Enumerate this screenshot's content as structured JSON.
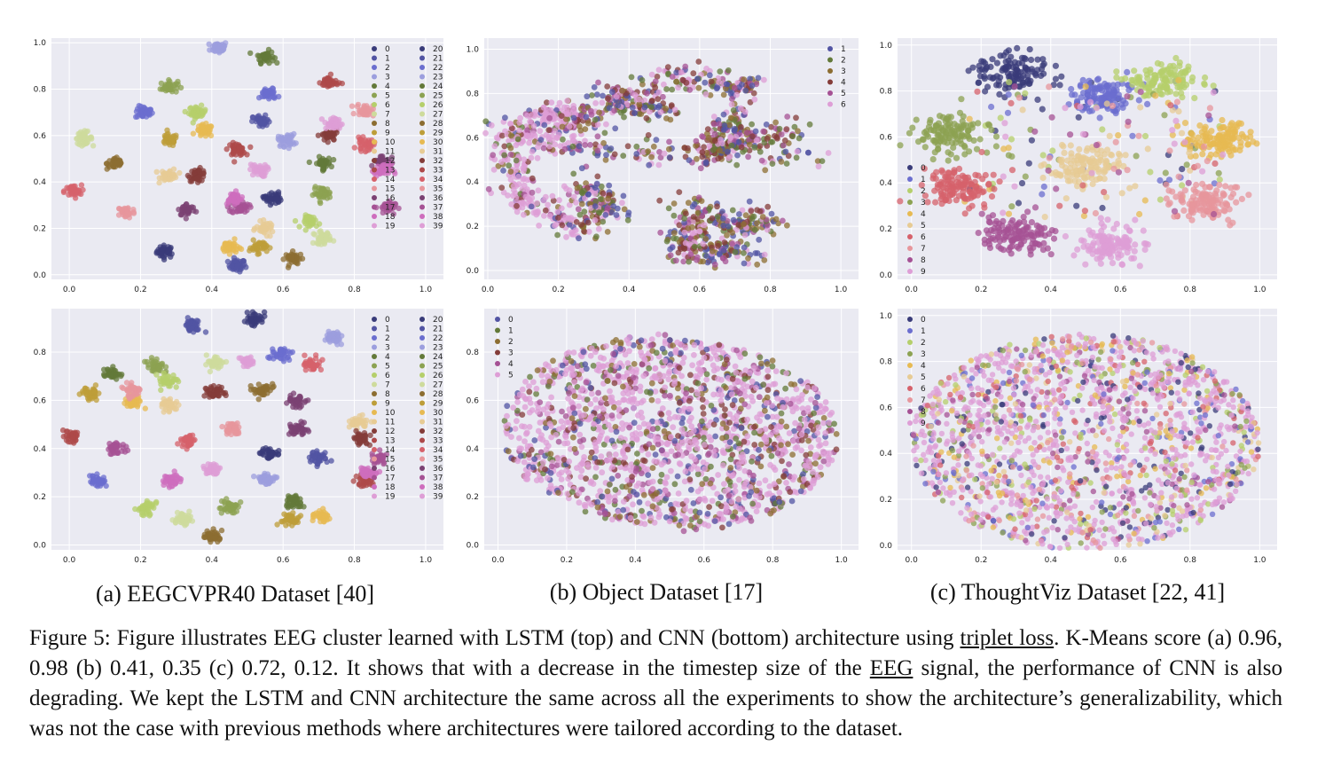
{
  "figure": {
    "subcaptions": [
      "(a) EEGCVPR40 Dataset [40]",
      "(b) Object Dataset [17]",
      "(c) ThoughtViz Dataset [22, 41]"
    ],
    "caption_parts": [
      "Figure 5: Figure illustrates EEG cluster learned with LSTM (top) and CNN (bottom) architecture using ",
      "triplet loss",
      ". K-Means score (a) 0.96, 0.98 (b) 0.41, 0.35 (c) 0.72, 0.12. It shows that with a decrease in the timestep size of the ",
      "EEG",
      " signal, the performance of CNN is also degrading. We kept the LSTM and CNN architecture the same across all the experiments to show the architecture’s generalizability, which was not the case with previous methods where architectures were tailored according to the dataset."
    ]
  },
  "colors": {
    "plot_bg": "#eaeaf2",
    "grid": "#ffffff",
    "palette": [
      "#393b79",
      "#5254a3",
      "#6b6ecf",
      "#9c9ede",
      "#637939",
      "#8ca252",
      "#b5cf6b",
      "#cedb9c",
      "#8c6d31",
      "#bd9e39",
      "#e7ba52",
      "#e7cb94",
      "#843c39",
      "#ad494a",
      "#d6616b",
      "#e7969c",
      "#7b4173",
      "#a55194",
      "#ce6dbd",
      "#de9ed6"
    ]
  },
  "chart_data": [
    {
      "id": "eegcvpr40-lstm",
      "type": "scatter",
      "title": "",
      "xlabel": "",
      "ylabel": "",
      "xlim": [
        -0.05,
        1.05
      ],
      "ylim": [
        -0.02,
        1.02
      ],
      "xticks": [
        "0.0",
        "0.2",
        "0.4",
        "0.6",
        "0.8",
        "1.0"
      ],
      "yticks": [
        "0.0",
        "0.2",
        "0.4",
        "0.6",
        "0.8",
        "1.0"
      ],
      "legend": {
        "placement": "right",
        "columns": 2,
        "labels": [
          "0",
          "1",
          "2",
          "3",
          "4",
          "5",
          "6",
          "7",
          "8",
          "9",
          "10",
          "11",
          "12",
          "13",
          "14",
          "15",
          "16",
          "17",
          "18",
          "19",
          "20",
          "21",
          "22",
          "23",
          "24",
          "25",
          "26",
          "27",
          "28",
          "29",
          "30",
          "31",
          "32",
          "33",
          "34",
          "35",
          "36",
          "37",
          "38",
          "39"
        ]
      },
      "cluster_centers": [
        [
          0.27,
          0.1
        ],
        [
          0.47,
          0.04
        ],
        [
          0.21,
          0.7
        ],
        [
          0.42,
          0.98
        ],
        [
          0.55,
          0.94
        ],
        [
          0.28,
          0.81
        ],
        [
          0.36,
          0.7
        ],
        [
          0.04,
          0.59
        ],
        [
          0.13,
          0.48
        ],
        [
          0.28,
          0.58
        ],
        [
          0.38,
          0.62
        ],
        [
          0.28,
          0.43
        ],
        [
          0.36,
          0.43
        ],
        [
          0.47,
          0.54
        ],
        [
          0.01,
          0.36
        ],
        [
          0.16,
          0.27
        ],
        [
          0.33,
          0.28
        ],
        [
          0.48,
          0.29
        ],
        [
          0.46,
          0.33
        ],
        [
          0.53,
          0.45
        ],
        [
          0.57,
          0.33
        ],
        [
          0.54,
          0.66
        ],
        [
          0.56,
          0.78
        ],
        [
          0.61,
          0.58
        ],
        [
          0.71,
          0.48
        ],
        [
          0.71,
          0.35
        ],
        [
          0.68,
          0.23
        ],
        [
          0.71,
          0.16
        ],
        [
          0.63,
          0.07
        ],
        [
          0.53,
          0.12
        ],
        [
          0.45,
          0.12
        ],
        [
          0.55,
          0.2
        ],
        [
          0.73,
          0.6
        ],
        [
          0.73,
          0.83
        ],
        [
          0.83,
          0.56
        ],
        [
          0.83,
          0.71
        ],
        [
          0.88,
          0.49
        ],
        [
          0.89,
          0.29
        ],
        [
          0.88,
          0.45
        ],
        [
          0.74,
          0.65
        ]
      ],
      "cluster_spread": 0.011,
      "points_per_cluster": 40
    },
    {
      "id": "object-lstm",
      "type": "scatter",
      "title": "",
      "xlabel": "",
      "ylabel": "",
      "xlim": [
        -0.01,
        1.05
      ],
      "ylim": [
        -0.04,
        1.05
      ],
      "xticks": [
        "0.0",
        "0.2",
        "0.4",
        "0.6",
        "0.8",
        "1.0"
      ],
      "yticks": [
        "0.0",
        "0.2",
        "0.4",
        "0.6",
        "0.8",
        "1.0"
      ],
      "legend": {
        "placement": "top-right",
        "columns": 1,
        "labels": [
          "1",
          "2",
          "3",
          "4",
          "5",
          "6"
        ]
      },
      "shape": "manifold",
      "points": 1500
    },
    {
      "id": "thoughtviz-lstm",
      "type": "scatter",
      "title": "",
      "xlabel": "",
      "ylabel": "",
      "xlim": [
        -0.04,
        1.05
      ],
      "ylim": [
        -0.02,
        1.03
      ],
      "xticks": [
        "0.0",
        "0.2",
        "0.4",
        "0.6",
        "0.8",
        "1.0"
      ],
      "yticks": [
        "0.0",
        "0.2",
        "0.4",
        "0.6",
        "0.8",
        "1.0"
      ],
      "legend": {
        "placement": "center-left",
        "columns": 1,
        "labels": [
          "0",
          "1",
          "2",
          "3",
          "4",
          "5",
          "6",
          "7",
          "8",
          "9"
        ]
      },
      "cluster_centers": [
        [
          0.29,
          0.88
        ],
        [
          0.55,
          0.78
        ],
        [
          0.72,
          0.85
        ],
        [
          0.1,
          0.61
        ],
        [
          0.89,
          0.59
        ],
        [
          0.5,
          0.47
        ],
        [
          0.12,
          0.39
        ],
        [
          0.85,
          0.32
        ],
        [
          0.3,
          0.18
        ],
        [
          0.58,
          0.13
        ]
      ],
      "cluster_spread": 0.045,
      "points_per_cluster": 120
    },
    {
      "id": "eegcvpr40-cnn",
      "type": "scatter",
      "title": "",
      "xlabel": "",
      "ylabel": "",
      "xlim": [
        -0.05,
        1.05
      ],
      "ylim": [
        -0.02,
        0.98
      ],
      "xticks": [
        "0.0",
        "0.2",
        "0.4",
        "0.6",
        "0.8",
        "1.0"
      ],
      "yticks": [
        "0.0",
        "0.2",
        "0.4",
        "0.6",
        "0.8"
      ],
      "legend": {
        "placement": "right",
        "columns": 2,
        "labels": [
          "0",
          "1",
          "2",
          "3",
          "4",
          "5",
          "6",
          "7",
          "8",
          "9",
          "10",
          "11",
          "12",
          "13",
          "14",
          "15",
          "16",
          "17",
          "18",
          "19",
          "20",
          "21",
          "22",
          "23",
          "24",
          "25",
          "26",
          "27",
          "28",
          "29",
          "30",
          "31",
          "32",
          "33",
          "34",
          "35",
          "36",
          "37",
          "38",
          "39"
        ]
      },
      "cluster_centers": [
        [
          0.52,
          0.94
        ],
        [
          0.35,
          0.91
        ],
        [
          0.59,
          0.79
        ],
        [
          0.74,
          0.86
        ],
        [
          0.12,
          0.71
        ],
        [
          0.24,
          0.74
        ],
        [
          0.28,
          0.68
        ],
        [
          0.41,
          0.75
        ],
        [
          0.54,
          0.64
        ],
        [
          0.06,
          0.63
        ],
        [
          0.18,
          0.59
        ],
        [
          0.28,
          0.58
        ],
        [
          0.41,
          0.63
        ],
        [
          0.01,
          0.45
        ],
        [
          0.33,
          0.43
        ],
        [
          0.46,
          0.48
        ],
        [
          0.64,
          0.6
        ],
        [
          0.13,
          0.4
        ],
        [
          0.29,
          0.27
        ],
        [
          0.4,
          0.31
        ],
        [
          0.56,
          0.38
        ],
        [
          0.7,
          0.36
        ],
        [
          0.08,
          0.27
        ],
        [
          0.55,
          0.27
        ],
        [
          0.63,
          0.18
        ],
        [
          0.45,
          0.16
        ],
        [
          0.22,
          0.15
        ],
        [
          0.32,
          0.11
        ],
        [
          0.4,
          0.04
        ],
        [
          0.62,
          0.1
        ],
        [
          0.71,
          0.12
        ],
        [
          0.81,
          0.51
        ],
        [
          0.82,
          0.44
        ],
        [
          0.83,
          0.27
        ],
        [
          0.68,
          0.75
        ],
        [
          0.18,
          0.64
        ],
        [
          0.64,
          0.48
        ],
        [
          0.87,
          0.36
        ],
        [
          0.84,
          0.3
        ],
        [
          0.5,
          0.76
        ]
      ],
      "cluster_spread": 0.011,
      "points_per_cluster": 40
    },
    {
      "id": "object-cnn",
      "type": "scatter",
      "title": "",
      "xlabel": "",
      "ylabel": "",
      "xlim": [
        -0.04,
        1.05
      ],
      "ylim": [
        -0.02,
        0.98
      ],
      "xticks": [
        "0.0",
        "0.2",
        "0.4",
        "0.6",
        "0.8",
        "1.0"
      ],
      "yticks": [
        "0.0",
        "0.2",
        "0.4",
        "0.6",
        "0.8"
      ],
      "legend": {
        "placement": "top-left",
        "columns": 1,
        "labels": [
          "0",
          "1",
          "2",
          "3",
          "4",
          "5"
        ]
      },
      "shape": "blob",
      "points": 1700
    },
    {
      "id": "thoughtviz-cnn",
      "type": "scatter",
      "title": "",
      "xlabel": "",
      "ylabel": "",
      "xlim": [
        -0.04,
        1.05
      ],
      "ylim": [
        -0.02,
        1.03
      ],
      "xticks": [
        "0.0",
        "0.2",
        "0.4",
        "0.6",
        "0.8",
        "1.0"
      ],
      "yticks": [
        "0.0",
        "0.2",
        "0.4",
        "0.6",
        "0.8",
        "1.0"
      ],
      "legend": {
        "placement": "left",
        "columns": 1,
        "labels": [
          "0",
          "1",
          "2",
          "3",
          "4",
          "5",
          "6",
          "7",
          "8",
          "9"
        ]
      },
      "shape": "ellipse",
      "points": 1800
    }
  ]
}
